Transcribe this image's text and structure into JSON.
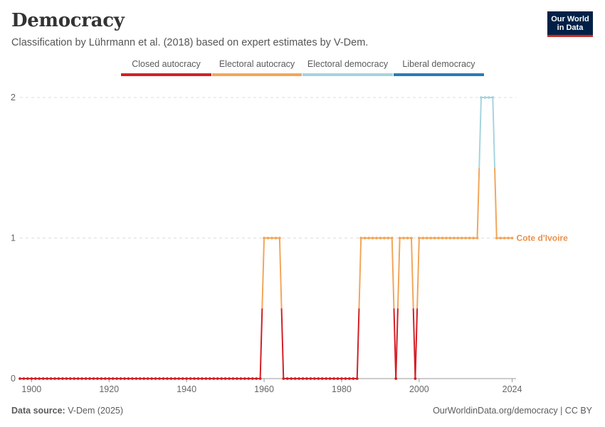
{
  "header": {
    "title": "Democracy",
    "subtitle": "Classification by Lührmann et al. (2018) based on expert estimates by V-Dem."
  },
  "logo": {
    "line1": "Our World",
    "line2": "in Data"
  },
  "footer": {
    "source_label": "Data source:",
    "source_value": "V-Dem (2025)",
    "link": "OurWorldinData.org/democracy | CC BY"
  },
  "legend": [
    {
      "label": "Closed autocracy",
      "color": "#d31f26"
    },
    {
      "label": "Electoral autocracy",
      "color": "#f2a65a"
    },
    {
      "label": "Electoral democracy",
      "color": "#a6d4df"
    },
    {
      "label": "Liberal democracy",
      "color": "#2c7bb6"
    }
  ],
  "chart_data": {
    "type": "line",
    "title": "Democracy",
    "subtitle": "Classification by Lührmann et al. (2018) based on expert estimates by V-Dem.",
    "xlim": [
      1897,
      2025
    ],
    "ylim": [
      0,
      2
    ],
    "x_ticks": [
      1900,
      1920,
      1940,
      1960,
      1980,
      2000,
      2024
    ],
    "y_ticks": [
      0,
      1,
      2
    ],
    "grid": "horizontal dashed",
    "legend_position": "top",
    "series": [
      {
        "name": "Cote d'Ivoire",
        "label_color": "#e9904d",
        "points": [
          [
            1897,
            0
          ],
          [
            1898,
            0
          ],
          [
            1899,
            0
          ],
          [
            1900,
            0
          ],
          [
            1901,
            0
          ],
          [
            1902,
            0
          ],
          [
            1903,
            0
          ],
          [
            1904,
            0
          ],
          [
            1905,
            0
          ],
          [
            1906,
            0
          ],
          [
            1907,
            0
          ],
          [
            1908,
            0
          ],
          [
            1909,
            0
          ],
          [
            1910,
            0
          ],
          [
            1911,
            0
          ],
          [
            1912,
            0
          ],
          [
            1913,
            0
          ],
          [
            1914,
            0
          ],
          [
            1915,
            0
          ],
          [
            1916,
            0
          ],
          [
            1917,
            0
          ],
          [
            1918,
            0
          ],
          [
            1919,
            0
          ],
          [
            1920,
            0
          ],
          [
            1921,
            0
          ],
          [
            1922,
            0
          ],
          [
            1923,
            0
          ],
          [
            1924,
            0
          ],
          [
            1925,
            0
          ],
          [
            1926,
            0
          ],
          [
            1927,
            0
          ],
          [
            1928,
            0
          ],
          [
            1929,
            0
          ],
          [
            1930,
            0
          ],
          [
            1931,
            0
          ],
          [
            1932,
            0
          ],
          [
            1933,
            0
          ],
          [
            1934,
            0
          ],
          [
            1935,
            0
          ],
          [
            1936,
            0
          ],
          [
            1937,
            0
          ],
          [
            1938,
            0
          ],
          [
            1939,
            0
          ],
          [
            1940,
            0
          ],
          [
            1941,
            0
          ],
          [
            1942,
            0
          ],
          [
            1943,
            0
          ],
          [
            1944,
            0
          ],
          [
            1945,
            0
          ],
          [
            1946,
            0
          ],
          [
            1947,
            0
          ],
          [
            1948,
            0
          ],
          [
            1949,
            0
          ],
          [
            1950,
            0
          ],
          [
            1951,
            0
          ],
          [
            1952,
            0
          ],
          [
            1953,
            0
          ],
          [
            1954,
            0
          ],
          [
            1955,
            0
          ],
          [
            1956,
            0
          ],
          [
            1957,
            0
          ],
          [
            1958,
            0
          ],
          [
            1959,
            0
          ],
          [
            1960,
            1
          ],
          [
            1961,
            1
          ],
          [
            1962,
            1
          ],
          [
            1963,
            1
          ],
          [
            1964,
            1
          ],
          [
            1965,
            0
          ],
          [
            1966,
            0
          ],
          [
            1967,
            0
          ],
          [
            1968,
            0
          ],
          [
            1969,
            0
          ],
          [
            1970,
            0
          ],
          [
            1971,
            0
          ],
          [
            1972,
            0
          ],
          [
            1973,
            0
          ],
          [
            1974,
            0
          ],
          [
            1975,
            0
          ],
          [
            1976,
            0
          ],
          [
            1977,
            0
          ],
          [
            1978,
            0
          ],
          [
            1979,
            0
          ],
          [
            1980,
            0
          ],
          [
            1981,
            0
          ],
          [
            1982,
            0
          ],
          [
            1983,
            0
          ],
          [
            1984,
            0
          ],
          [
            1985,
            1
          ],
          [
            1986,
            1
          ],
          [
            1987,
            1
          ],
          [
            1988,
            1
          ],
          [
            1989,
            1
          ],
          [
            1990,
            1
          ],
          [
            1991,
            1
          ],
          [
            1992,
            1
          ],
          [
            1993,
            1
          ],
          [
            1994,
            0
          ],
          [
            1995,
            1
          ],
          [
            1996,
            1
          ],
          [
            1997,
            1
          ],
          [
            1998,
            1
          ],
          [
            1999,
            0
          ],
          [
            2000,
            1
          ],
          [
            2001,
            1
          ],
          [
            2002,
            1
          ],
          [
            2003,
            1
          ],
          [
            2004,
            1
          ],
          [
            2005,
            1
          ],
          [
            2006,
            1
          ],
          [
            2007,
            1
          ],
          [
            2008,
            1
          ],
          [
            2009,
            1
          ],
          [
            2010,
            1
          ],
          [
            2011,
            1
          ],
          [
            2012,
            1
          ],
          [
            2013,
            1
          ],
          [
            2014,
            1
          ],
          [
            2015,
            1
          ],
          [
            2016,
            2
          ],
          [
            2017,
            2
          ],
          [
            2018,
            2
          ],
          [
            2019,
            2
          ],
          [
            2020,
            1
          ],
          [
            2021,
            1
          ],
          [
            2022,
            1
          ],
          [
            2023,
            1
          ],
          [
            2024,
            1
          ]
        ]
      }
    ],
    "category_colors": {
      "0": "#d31f26",
      "1": "#f2a65a",
      "2": "#a6d4df",
      "3": "#2c7bb6"
    }
  }
}
